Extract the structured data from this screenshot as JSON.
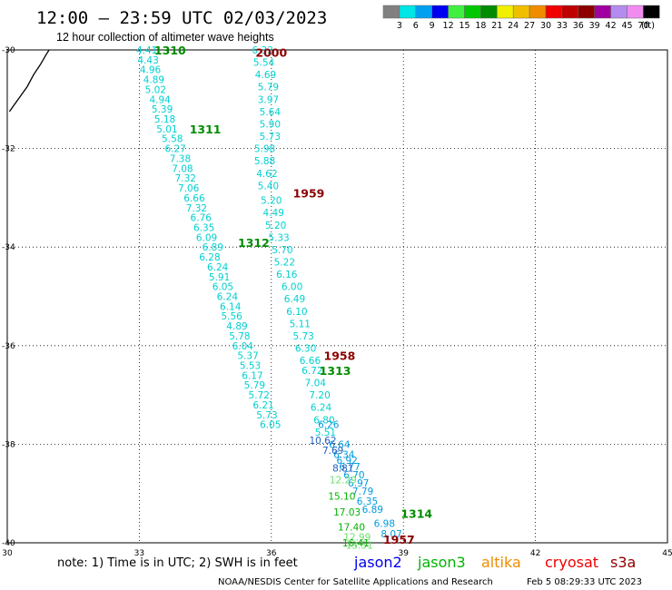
{
  "header": {
    "title": "12:00 – 23:59 UTC 02/03/2023",
    "subtitle": "12 hour collection of altimeter wave heights"
  },
  "legend": {
    "unit": "(ft)",
    "bins": [
      {
        "label": "3",
        "color": "#808080"
      },
      {
        "label": "6",
        "color": "#00e5e5"
      },
      {
        "label": "9",
        "color": "#00a0f0"
      },
      {
        "label": "12",
        "color": "#0000f0"
      },
      {
        "label": "15",
        "color": "#40f040"
      },
      {
        "label": "18",
        "color": "#00c800"
      },
      {
        "label": "21",
        "color": "#008c00"
      },
      {
        "label": "24",
        "color": "#f0f000"
      },
      {
        "label": "27",
        "color": "#f0c000"
      },
      {
        "label": "30",
        "color": "#f08c00"
      },
      {
        "label": "33",
        "color": "#f00000"
      },
      {
        "label": "36",
        "color": "#c00000"
      },
      {
        "label": "39",
        "color": "#8c0000"
      },
      {
        "label": "42",
        "color": "#a000a0"
      },
      {
        "label": "45",
        "color": "#b48cf0"
      },
      {
        "label": "70",
        "color": "#f08cf0"
      },
      {
        "label": "",
        "color": "#000000"
      }
    ]
  },
  "axes": {
    "x_ticks": [
      "30",
      "33",
      "36",
      "39",
      "42",
      "45"
    ],
    "y_ticks": [
      "-30",
      "-32",
      "-34",
      "-36",
      "-38",
      "-40"
    ],
    "x_range": [
      30,
      45
    ],
    "y_range": [
      -40,
      -30
    ]
  },
  "coastline": [
    [
      30.05,
      -31.25
    ],
    [
      30.25,
      -31.0
    ],
    [
      30.45,
      -30.75
    ],
    [
      30.6,
      -30.5
    ],
    [
      30.75,
      -30.3
    ],
    [
      30.88,
      -30.1
    ],
    [
      30.95,
      -30.0
    ]
  ],
  "tracks": [
    {
      "color": "#00d0d0",
      "points": [
        {
          "lat": -30.0,
          "lon": 33.17,
          "v": "4.41"
        },
        {
          "lat": -30.2,
          "lon": 33.2,
          "v": "4.43"
        },
        {
          "lat": -30.4,
          "lon": 33.25,
          "v": "4.96"
        },
        {
          "lat": -30.6,
          "lon": 33.33,
          "v": "4.89"
        },
        {
          "lat": -30.8,
          "lon": 33.37,
          "v": "5.02"
        },
        {
          "lat": -31.0,
          "lon": 33.47,
          "v": "4.94"
        },
        {
          "lat": -31.2,
          "lon": 33.52,
          "v": "5.39"
        },
        {
          "lat": -31.4,
          "lon": 33.58,
          "v": "5.18"
        },
        {
          "lat": -31.6,
          "lon": 33.63,
          "v": "5.01"
        },
        {
          "lat": -31.8,
          "lon": 33.75,
          "v": "5.58"
        },
        {
          "lat": -32.0,
          "lon": 33.82,
          "v": "6.27"
        },
        {
          "lat": -32.2,
          "lon": 33.93,
          "v": "7.38"
        },
        {
          "lat": -32.4,
          "lon": 33.98,
          "v": "7.08"
        },
        {
          "lat": -32.6,
          "lon": 34.05,
          "v": "7.32"
        },
        {
          "lat": -32.8,
          "lon": 34.12,
          "v": "7.06"
        },
        {
          "lat": -33.0,
          "lon": 34.25,
          "v": "6.66"
        },
        {
          "lat": -33.2,
          "lon": 34.3,
          "v": "7.32"
        },
        {
          "lat": -33.4,
          "lon": 34.4,
          "v": "6.76"
        },
        {
          "lat": -33.6,
          "lon": 34.47,
          "v": "6.35"
        },
        {
          "lat": -33.8,
          "lon": 34.53,
          "v": "6.09"
        },
        {
          "lat": -34.0,
          "lon": 34.67,
          "v": "6.89"
        },
        {
          "lat": -34.2,
          "lon": 34.6,
          "v": "6.28"
        },
        {
          "lat": -34.4,
          "lon": 34.78,
          "v": "6.24"
        },
        {
          "lat": -34.6,
          "lon": 34.82,
          "v": "5.91"
        },
        {
          "lat": -34.8,
          "lon": 34.9,
          "v": "6.05"
        },
        {
          "lat": -35.0,
          "lon": 35.0,
          "v": "6.24"
        },
        {
          "lat": -35.2,
          "lon": 35.07,
          "v": "6.14"
        },
        {
          "lat": -35.4,
          "lon": 35.1,
          "v": "5.56"
        },
        {
          "lat": -35.6,
          "lon": 35.22,
          "v": "4.89"
        },
        {
          "lat": -35.8,
          "lon": 35.28,
          "v": "5.78"
        },
        {
          "lat": -36.0,
          "lon": 35.35,
          "v": "6.04"
        },
        {
          "lat": -36.2,
          "lon": 35.47,
          "v": "5.37"
        },
        {
          "lat": -36.4,
          "lon": 35.52,
          "v": "5.53"
        },
        {
          "lat": -36.6,
          "lon": 35.57,
          "v": "6.17"
        },
        {
          "lat": -36.8,
          "lon": 35.62,
          "v": "5.79"
        },
        {
          "lat": -37.0,
          "lon": 35.72,
          "v": "5.72"
        },
        {
          "lat": -37.2,
          "lon": 35.82,
          "v": "6.21"
        },
        {
          "lat": -37.4,
          "lon": 35.9,
          "v": "5.73"
        },
        {
          "lat": -37.6,
          "lon": 35.98,
          "v": "6.05"
        }
      ]
    },
    {
      "color": "#00d0d0",
      "points": [
        {
          "lat": -30.0,
          "lon": 35.8,
          "v": "6.33"
        },
        {
          "lat": -30.25,
          "lon": 35.83,
          "v": "5.54"
        },
        {
          "lat": -30.5,
          "lon": 35.87,
          "v": "4.69"
        },
        {
          "lat": -30.75,
          "lon": 35.93,
          "v": "5.79"
        },
        {
          "lat": -31.0,
          "lon": 35.93,
          "v": "3.97"
        },
        {
          "lat": -31.25,
          "lon": 35.97,
          "v": "5.64"
        },
        {
          "lat": -31.5,
          "lon": 35.97,
          "v": "5.90"
        },
        {
          "lat": -31.75,
          "lon": 35.97,
          "v": "5.73"
        },
        {
          "lat": -32.0,
          "lon": 35.85,
          "v": "5.98"
        },
        {
          "lat": -32.25,
          "lon": 35.85,
          "v": "5.88"
        },
        {
          "lat": -32.5,
          "lon": 35.9,
          "v": "4.62"
        },
        {
          "lat": -32.75,
          "lon": 35.93,
          "v": "5.40"
        },
        {
          "lat": -33.05,
          "lon": 36.0,
          "v": "5.20"
        },
        {
          "lat": -33.3,
          "lon": 36.05,
          "v": "4.49"
        },
        {
          "lat": -33.55,
          "lon": 36.1,
          "v": "5.20"
        },
        {
          "lat": -33.8,
          "lon": 36.17,
          "v": "5.33"
        },
        {
          "lat": -34.05,
          "lon": 36.25,
          "v": "5.70"
        },
        {
          "lat": -34.3,
          "lon": 36.3,
          "v": "5.22"
        },
        {
          "lat": -34.55,
          "lon": 36.35,
          "v": "6.16"
        },
        {
          "lat": -34.8,
          "lon": 36.47,
          "v": "6.00"
        },
        {
          "lat": -35.05,
          "lon": 36.53,
          "v": "6.49"
        },
        {
          "lat": -35.3,
          "lon": 36.58,
          "v": "6.10"
        },
        {
          "lat": -35.55,
          "lon": 36.65,
          "v": "5.11"
        },
        {
          "lat": -35.8,
          "lon": 36.73,
          "v": "5.73"
        },
        {
          "lat": -36.05,
          "lon": 36.78,
          "v": "6.30"
        },
        {
          "lat": -36.3,
          "lon": 36.88,
          "v": "6.66"
        },
        {
          "lat": -36.5,
          "lon": 36.93,
          "v": "6.72"
        },
        {
          "lat": -36.75,
          "lon": 37.0,
          "v": "7.04"
        },
        {
          "lat": -37.0,
          "lon": 37.1,
          "v": "7.20"
        },
        {
          "lat": -37.25,
          "lon": 37.13,
          "v": "6.24"
        },
        {
          "lat": -37.5,
          "lon": 37.2,
          "v": "6.80"
        },
        {
          "lat": -37.75,
          "lon": 37.23,
          "v": "5.51"
        }
      ]
    },
    {
      "color": "#009ae0",
      "points": [
        {
          "lat": -37.6,
          "lon": 37.3,
          "v": "6.26"
        },
        {
          "lat": -38.0,
          "lon": 37.55,
          "v": "6.64"
        },
        {
          "lat": -38.2,
          "lon": 37.65,
          "v": "6.34"
        },
        {
          "lat": -38.32,
          "lon": 37.72,
          "v": "6.92"
        },
        {
          "lat": -38.45,
          "lon": 37.78,
          "v": "6.77"
        },
        {
          "lat": -38.62,
          "lon": 37.88,
          "v": "6.70"
        },
        {
          "lat": -38.78,
          "lon": 37.98,
          "v": "6.97"
        },
        {
          "lat": -38.95,
          "lon": 38.08,
          "v": "7.79"
        },
        {
          "lat": -39.15,
          "lon": 38.18,
          "v": "6.35"
        },
        {
          "lat": -39.32,
          "lon": 38.3,
          "v": "6.89"
        },
        {
          "lat": -39.6,
          "lon": 38.57,
          "v": "6.98"
        },
        {
          "lat": -39.82,
          "lon": 38.73,
          "v": "8.07"
        }
      ]
    },
    {
      "color": "#2060c0",
      "points": [
        {
          "lat": -37.92,
          "lon": 37.17,
          "v": "10.62"
        },
        {
          "lat": -38.12,
          "lon": 37.4,
          "v": "7.69"
        },
        {
          "lat": -38.48,
          "lon": 37.63,
          "v": "8.81"
        }
      ]
    },
    {
      "color": "#6ce06c",
      "points": [
        {
          "lat": -38.72,
          "lon": 37.63,
          "v": "12.29"
        },
        {
          "lat": -39.88,
          "lon": 37.95,
          "v": "12.99"
        },
        {
          "lat": -40.05,
          "lon": 38.0,
          "v": "13.51"
        }
      ]
    },
    {
      "color": "#00b400",
      "points": [
        {
          "lat": -39.05,
          "lon": 37.6,
          "v": "15.10"
        },
        {
          "lat": -39.37,
          "lon": 37.72,
          "v": "17.03"
        },
        {
          "lat": -39.68,
          "lon": 37.82,
          "v": "17.40"
        },
        {
          "lat": -40.0,
          "lon": 37.92,
          "v": "16.41"
        }
      ]
    }
  ],
  "pass_labels": [
    {
      "text": "1310",
      "lat": -30.0,
      "lon": 33.7,
      "color": "#008c00"
    },
    {
      "text": "2000",
      "lat": -30.05,
      "lon": 36.0,
      "color": "#8c0000"
    },
    {
      "text": "1311",
      "lat": -31.6,
      "lon": 34.5,
      "color": "#008c00"
    },
    {
      "text": "1959",
      "lat": -32.9,
      "lon": 36.85,
      "color": "#8c0000"
    },
    {
      "text": "1312",
      "lat": -33.9,
      "lon": 35.6,
      "color": "#008c00"
    },
    {
      "text": "1958",
      "lat": -36.2,
      "lon": 37.55,
      "color": "#8c0000"
    },
    {
      "text": "1313",
      "lat": -36.5,
      "lon": 37.45,
      "color": "#008c00"
    },
    {
      "text": "1314",
      "lat": -39.4,
      "lon": 39.3,
      "color": "#008c00"
    },
    {
      "text": "1957",
      "lat": -39.93,
      "lon": 38.9,
      "color": "#8c0000"
    }
  ],
  "footer": {
    "note": "note:  1) Time is in UTC; 2) SWH is in feet",
    "satellites": [
      {
        "name": "jason2",
        "color": "#0000f0"
      },
      {
        "name": "jason3",
        "color": "#00b400"
      },
      {
        "name": "altika",
        "color": "#f08c00"
      },
      {
        "name": "cryosat",
        "color": "#f00000"
      },
      {
        "name": "s3a",
        "color": "#8c0000"
      }
    ],
    "credit": "NOAA/NESDIS Center for Satellite Applications and Research",
    "timestamp": "Feb  5 08:29:33 UTC 2023"
  }
}
